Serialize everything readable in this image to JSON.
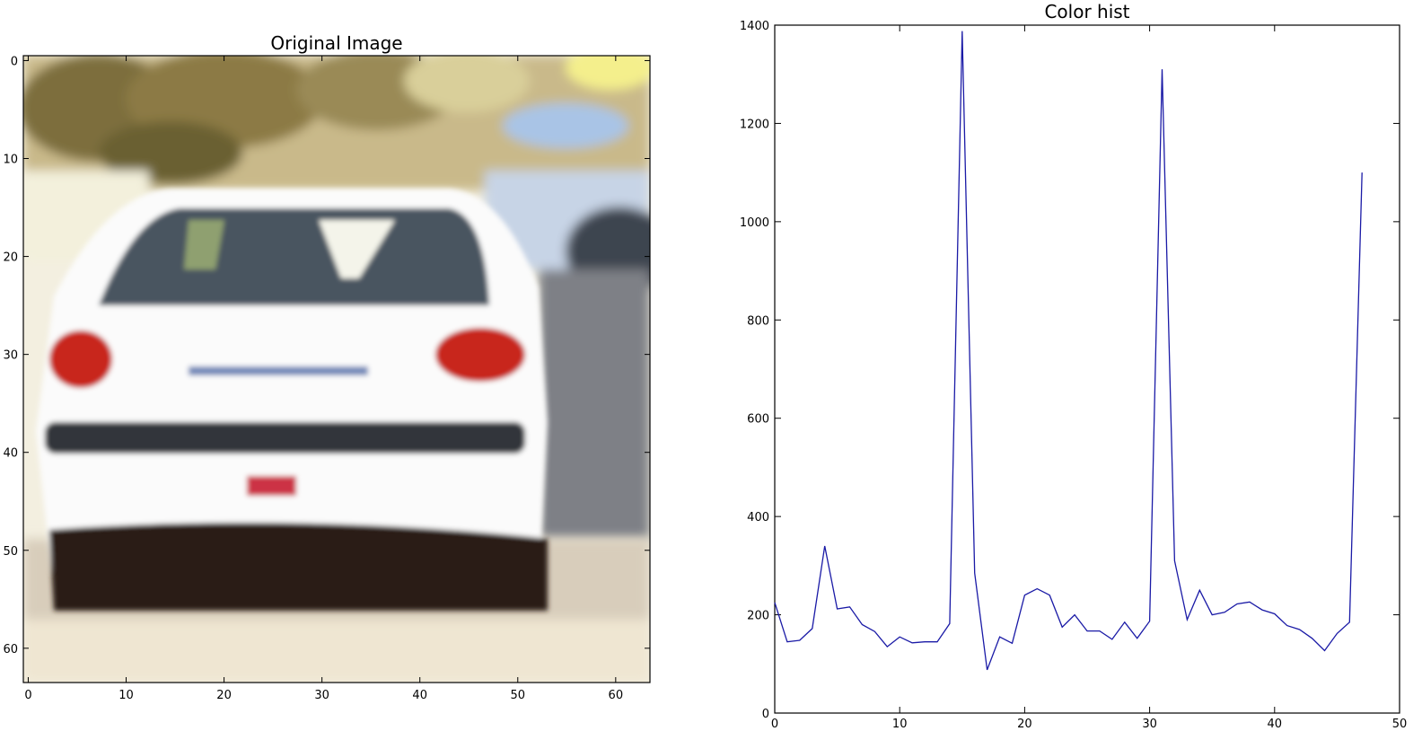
{
  "chart_data": [
    {
      "type": "image",
      "title": "Original Image",
      "xlim": [
        -0.5,
        63.5
      ],
      "ylim": [
        63.5,
        -0.5
      ],
      "xticks": [
        0,
        10,
        20,
        30,
        40,
        50,
        60
      ],
      "yticks": [
        0,
        10,
        20,
        30,
        40,
        50,
        60
      ],
      "image": "rear view of a white hatchback car on a road, trees in background"
    },
    {
      "type": "line",
      "title": "Color hist",
      "xlim": [
        0,
        50
      ],
      "ylim": [
        0,
        1400
      ],
      "xticks": [
        0,
        10,
        20,
        30,
        40,
        50
      ],
      "yticks": [
        0,
        200,
        400,
        600,
        800,
        1000,
        1200,
        1400
      ],
      "grid": false,
      "colors": {
        "line": "#1a1aa6"
      },
      "series": [
        {
          "x": [
            0,
            1,
            2,
            3,
            4,
            5,
            6,
            7,
            8,
            9,
            10,
            11,
            12,
            13,
            14,
            15,
            16,
            17,
            18,
            19,
            20,
            21,
            22,
            23,
            24,
            25,
            26,
            27,
            28,
            29,
            30,
            31,
            32,
            33,
            34,
            35,
            36,
            37,
            38,
            39,
            40,
            41,
            42,
            43,
            44,
            45,
            46,
            47
          ],
          "values": [
            225,
            145,
            148,
            172,
            340,
            212,
            216,
            180,
            166,
            135,
            155,
            143,
            145,
            145,
            182,
            1388,
            285,
            88,
            155,
            142,
            240,
            253,
            240,
            175,
            200,
            167,
            167,
            150,
            185,
            152,
            187,
            1310,
            310,
            190,
            250,
            200,
            205,
            222,
            226,
            210,
            202,
            178,
            170,
            152,
            127,
            162,
            185,
            1100
          ]
        }
      ]
    }
  ]
}
